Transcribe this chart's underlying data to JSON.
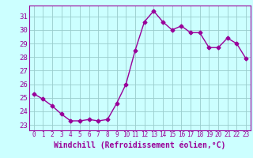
{
  "x": [
    0,
    1,
    2,
    3,
    4,
    5,
    6,
    7,
    8,
    9,
    10,
    11,
    12,
    13,
    14,
    15,
    16,
    17,
    18,
    19,
    20,
    21,
    22,
    23
  ],
  "y": [
    25.3,
    24.9,
    24.4,
    23.8,
    23.3,
    23.3,
    23.4,
    23.3,
    23.4,
    24.6,
    26.0,
    28.5,
    30.6,
    31.4,
    30.6,
    30.0,
    30.3,
    29.8,
    29.8,
    28.7,
    28.7,
    29.4,
    29.0,
    27.9
  ],
  "line_color": "#990099",
  "marker": "D",
  "marker_size": 2.5,
  "line_width": 1.0,
  "xlabel": "Windchill (Refroidissement éolien,°C)",
  "xlabel_fontsize": 7,
  "ylabel_ticks": [
    23,
    24,
    25,
    26,
    27,
    28,
    29,
    30,
    31
  ],
  "ylim": [
    22.6,
    31.8
  ],
  "xlim": [
    -0.5,
    23.5
  ],
  "xticks": [
    0,
    1,
    2,
    3,
    4,
    5,
    6,
    7,
    8,
    9,
    10,
    11,
    12,
    13,
    14,
    15,
    16,
    17,
    18,
    19,
    20,
    21,
    22,
    23
  ],
  "xtick_fontsize": 5.5,
  "ytick_fontsize": 6.5,
  "bg_color": "#ccffff",
  "grid_color": "#99cccc",
  "border_color": "#990099"
}
